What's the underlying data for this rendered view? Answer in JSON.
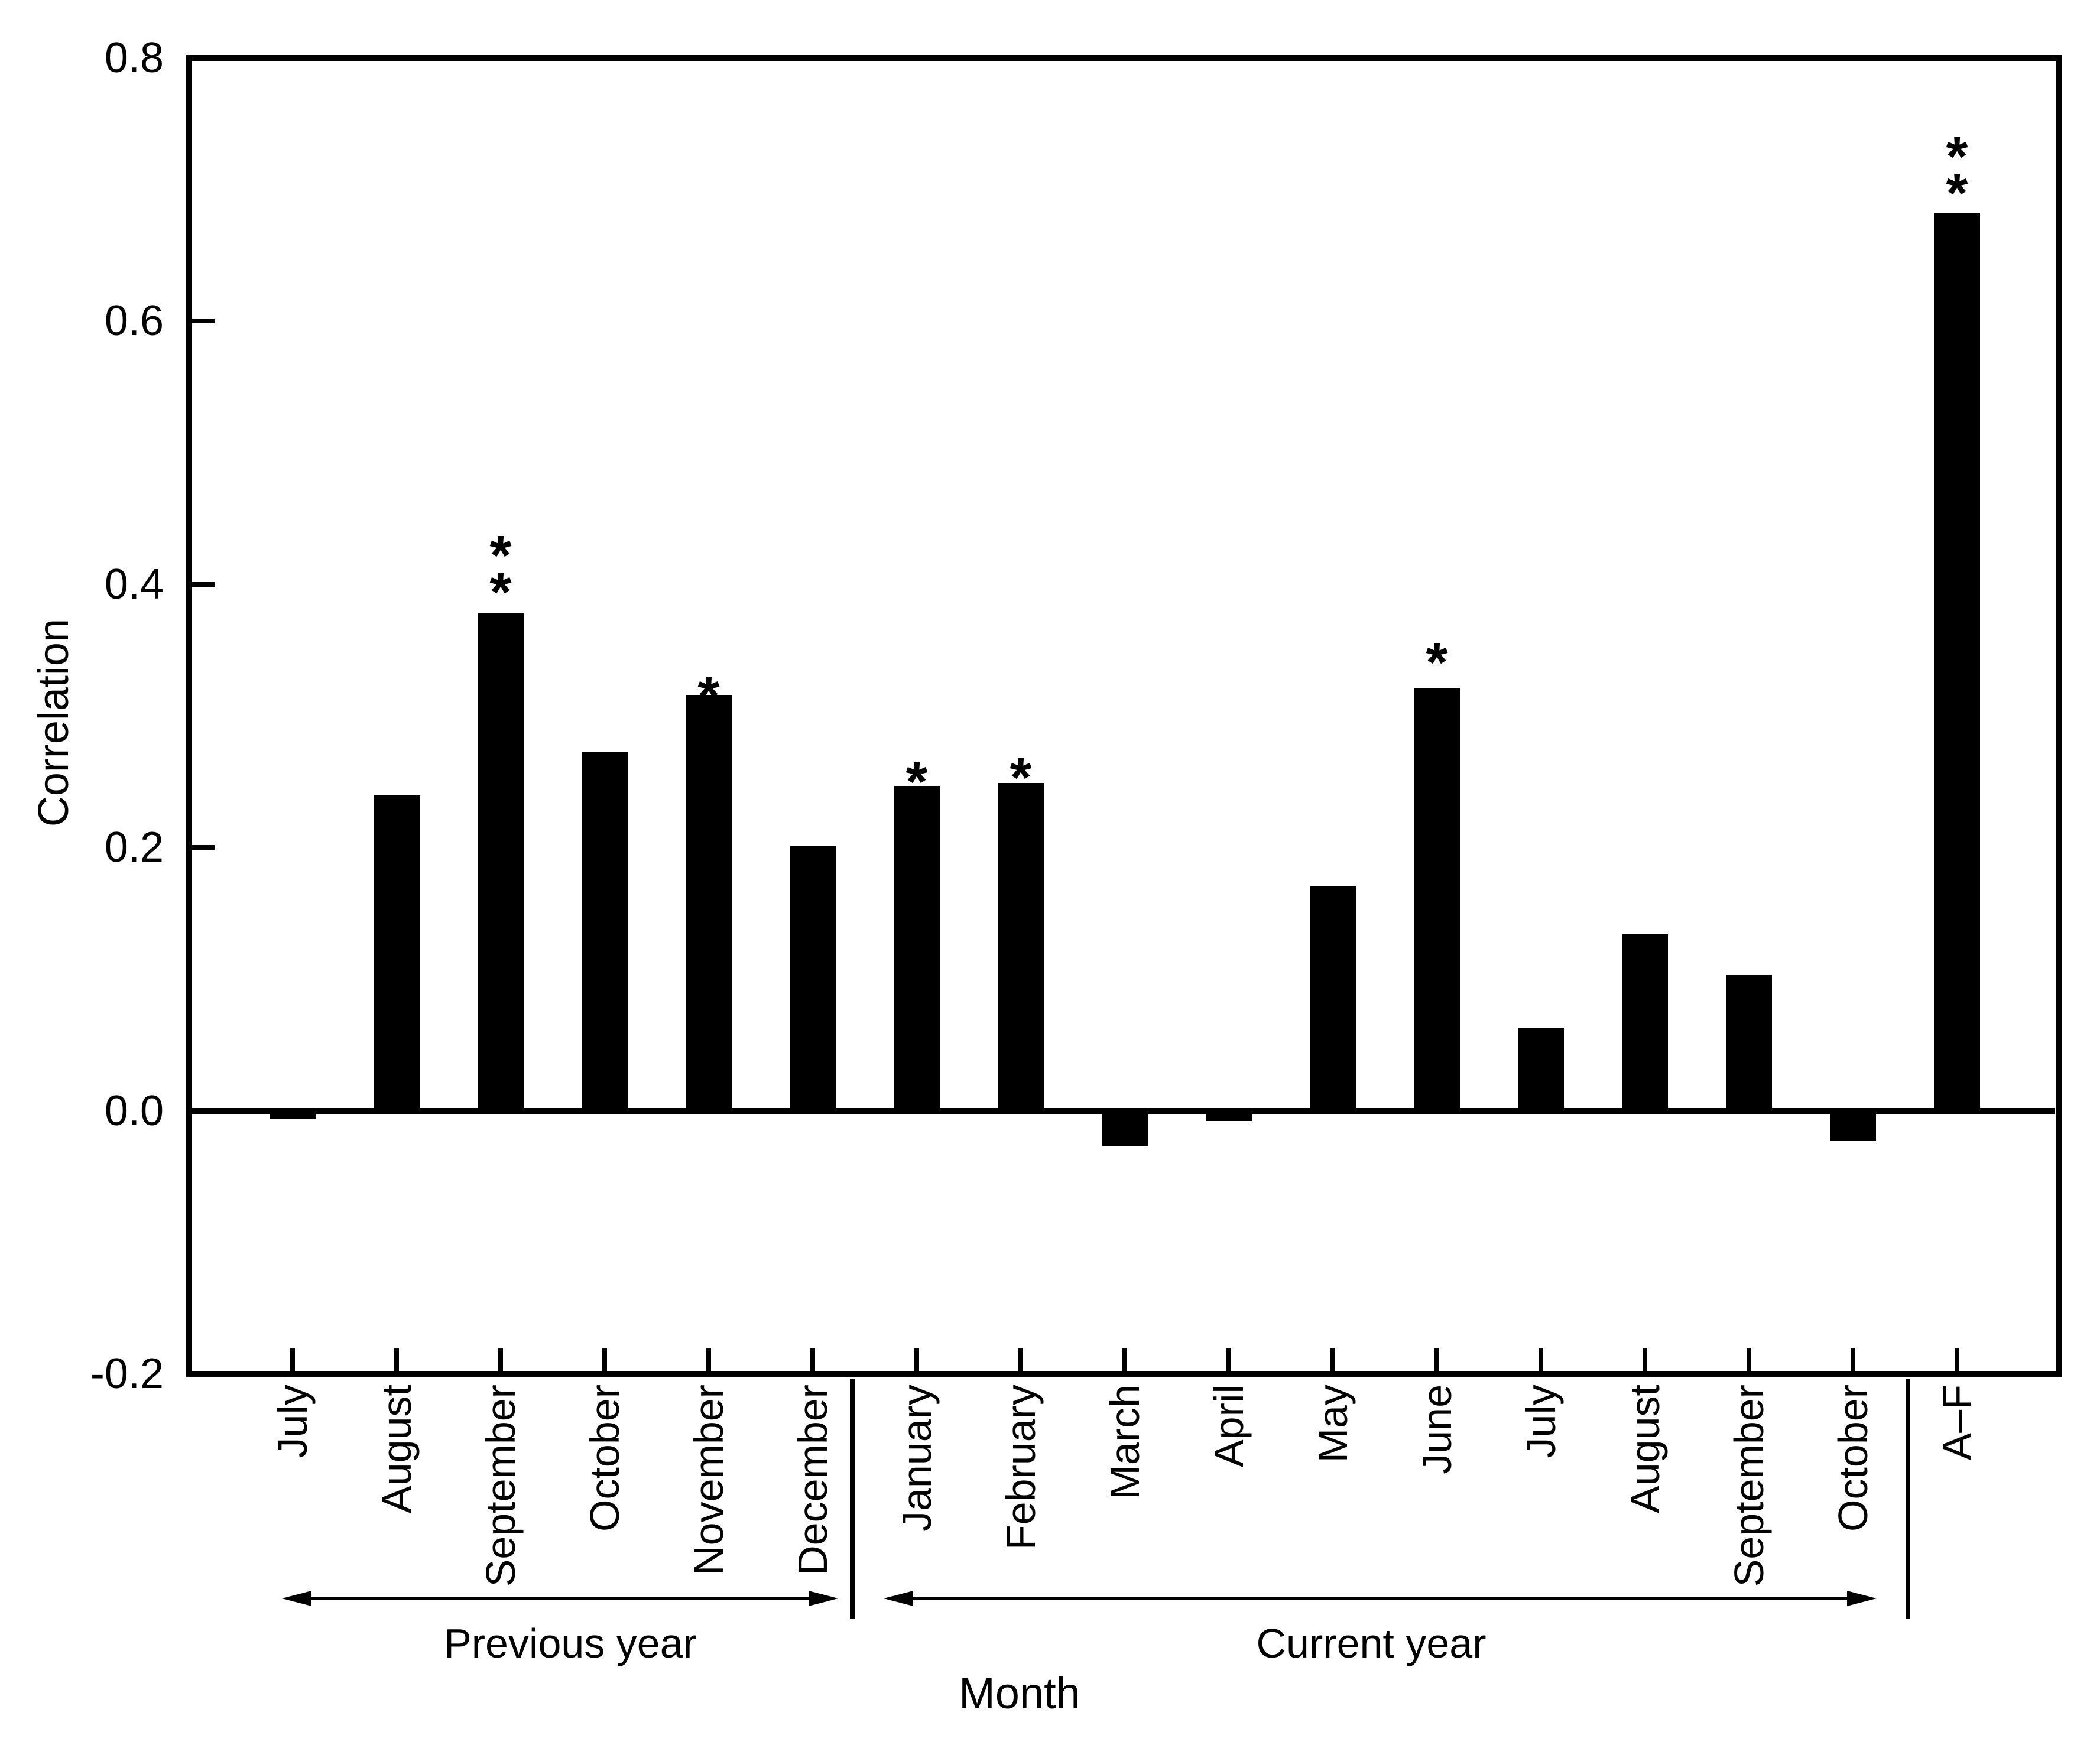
{
  "chart_data": {
    "type": "bar",
    "title": "",
    "xlabel": "Month",
    "ylabel": "Correlation",
    "ylim": [
      -0.2,
      0.8
    ],
    "yticks": [
      0.8,
      0.6,
      0.4,
      0.2,
      0.0,
      -0.2
    ],
    "ytick_labels": [
      "0.8",
      "0.6",
      "0.4",
      "0.2",
      "0.0",
      "-0.2"
    ],
    "bar_color": "#000000",
    "background_color": "#ffffff",
    "grid": "off",
    "legend": "none",
    "categories": [
      "July",
      "August",
      "September",
      "October",
      "November",
      "December",
      "January",
      "February",
      "March",
      "April",
      "May",
      "June",
      "July",
      "August",
      "September",
      "October",
      "A–F"
    ],
    "values": [
      -0.006,
      0.24,
      0.378,
      0.273,
      0.316,
      0.201,
      0.247,
      0.249,
      -0.027,
      -0.008,
      0.171,
      0.321,
      0.063,
      0.134,
      0.103,
      -0.023,
      0.682
    ],
    "significance": [
      "",
      "",
      "**",
      "",
      "*",
      "",
      "*",
      "*",
      "",
      "",
      "",
      "*",
      "",
      "",
      "",
      "",
      "**"
    ],
    "groups": [
      {
        "label": "Previous year",
        "span": [
          0,
          5
        ]
      },
      {
        "label": "Current year",
        "span": [
          6,
          15
        ]
      },
      {
        "label": "A–F",
        "span": [
          16,
          16
        ]
      }
    ]
  }
}
